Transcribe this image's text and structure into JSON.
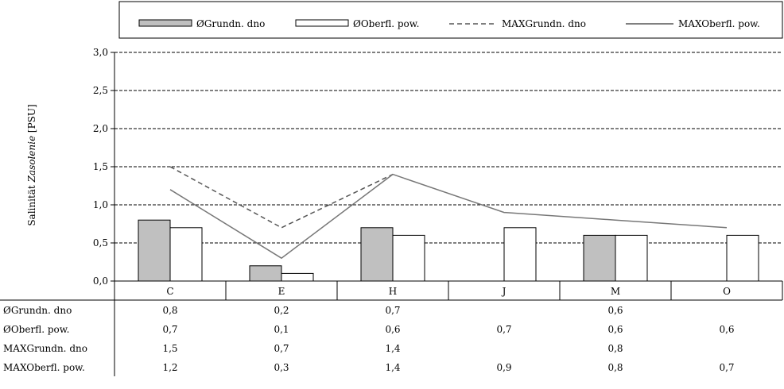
{
  "chart_data": {
    "type": "bar",
    "categories": [
      "C",
      "E",
      "H",
      "J",
      "M",
      "O"
    ],
    "ylabel_main": "Salinität",
    "ylabel_italic": "Zasolenie",
    "ylabel_unit": "[PSU]",
    "ylim": [
      0,
      3.0
    ],
    "yticks": [
      "0,0",
      "0,5",
      "1,0",
      "1,5",
      "2,0",
      "2,5",
      "3,0"
    ],
    "grid": true,
    "legend_position": "top",
    "series": [
      {
        "name": "ØGrundn. dno",
        "kind": "bar",
        "color": "#c0c0c0",
        "values": [
          0.8,
          0.2,
          0.7,
          null,
          0.6,
          null
        ],
        "labels": [
          "0,8",
          "0,2",
          "0,7",
          "",
          "0,6",
          ""
        ]
      },
      {
        "name": "ØOberfl. pow.",
        "kind": "bar",
        "color": "#ffffff",
        "values": [
          0.7,
          0.1,
          0.6,
          0.7,
          0.6,
          0.6
        ],
        "labels": [
          "0,7",
          "0,1",
          "0,6",
          "0,7",
          "0,6",
          "0,6"
        ]
      },
      {
        "name": "MAXGrundn. dno",
        "kind": "line",
        "dash": true,
        "color": "#555555",
        "values": [
          1.5,
          0.7,
          1.4,
          null,
          0.8,
          null
        ],
        "labels": [
          "1,5",
          "0,7",
          "1,4",
          "",
          "0,8",
          ""
        ]
      },
      {
        "name": "MAXOberfl. pow.",
        "kind": "line",
        "dash": false,
        "color": "#777777",
        "values": [
          1.2,
          0.3,
          1.4,
          0.9,
          0.8,
          0.7
        ],
        "labels": [
          "1,2",
          "0,3",
          "1,4",
          "0,9",
          "0,8",
          "0,7"
        ]
      }
    ]
  }
}
